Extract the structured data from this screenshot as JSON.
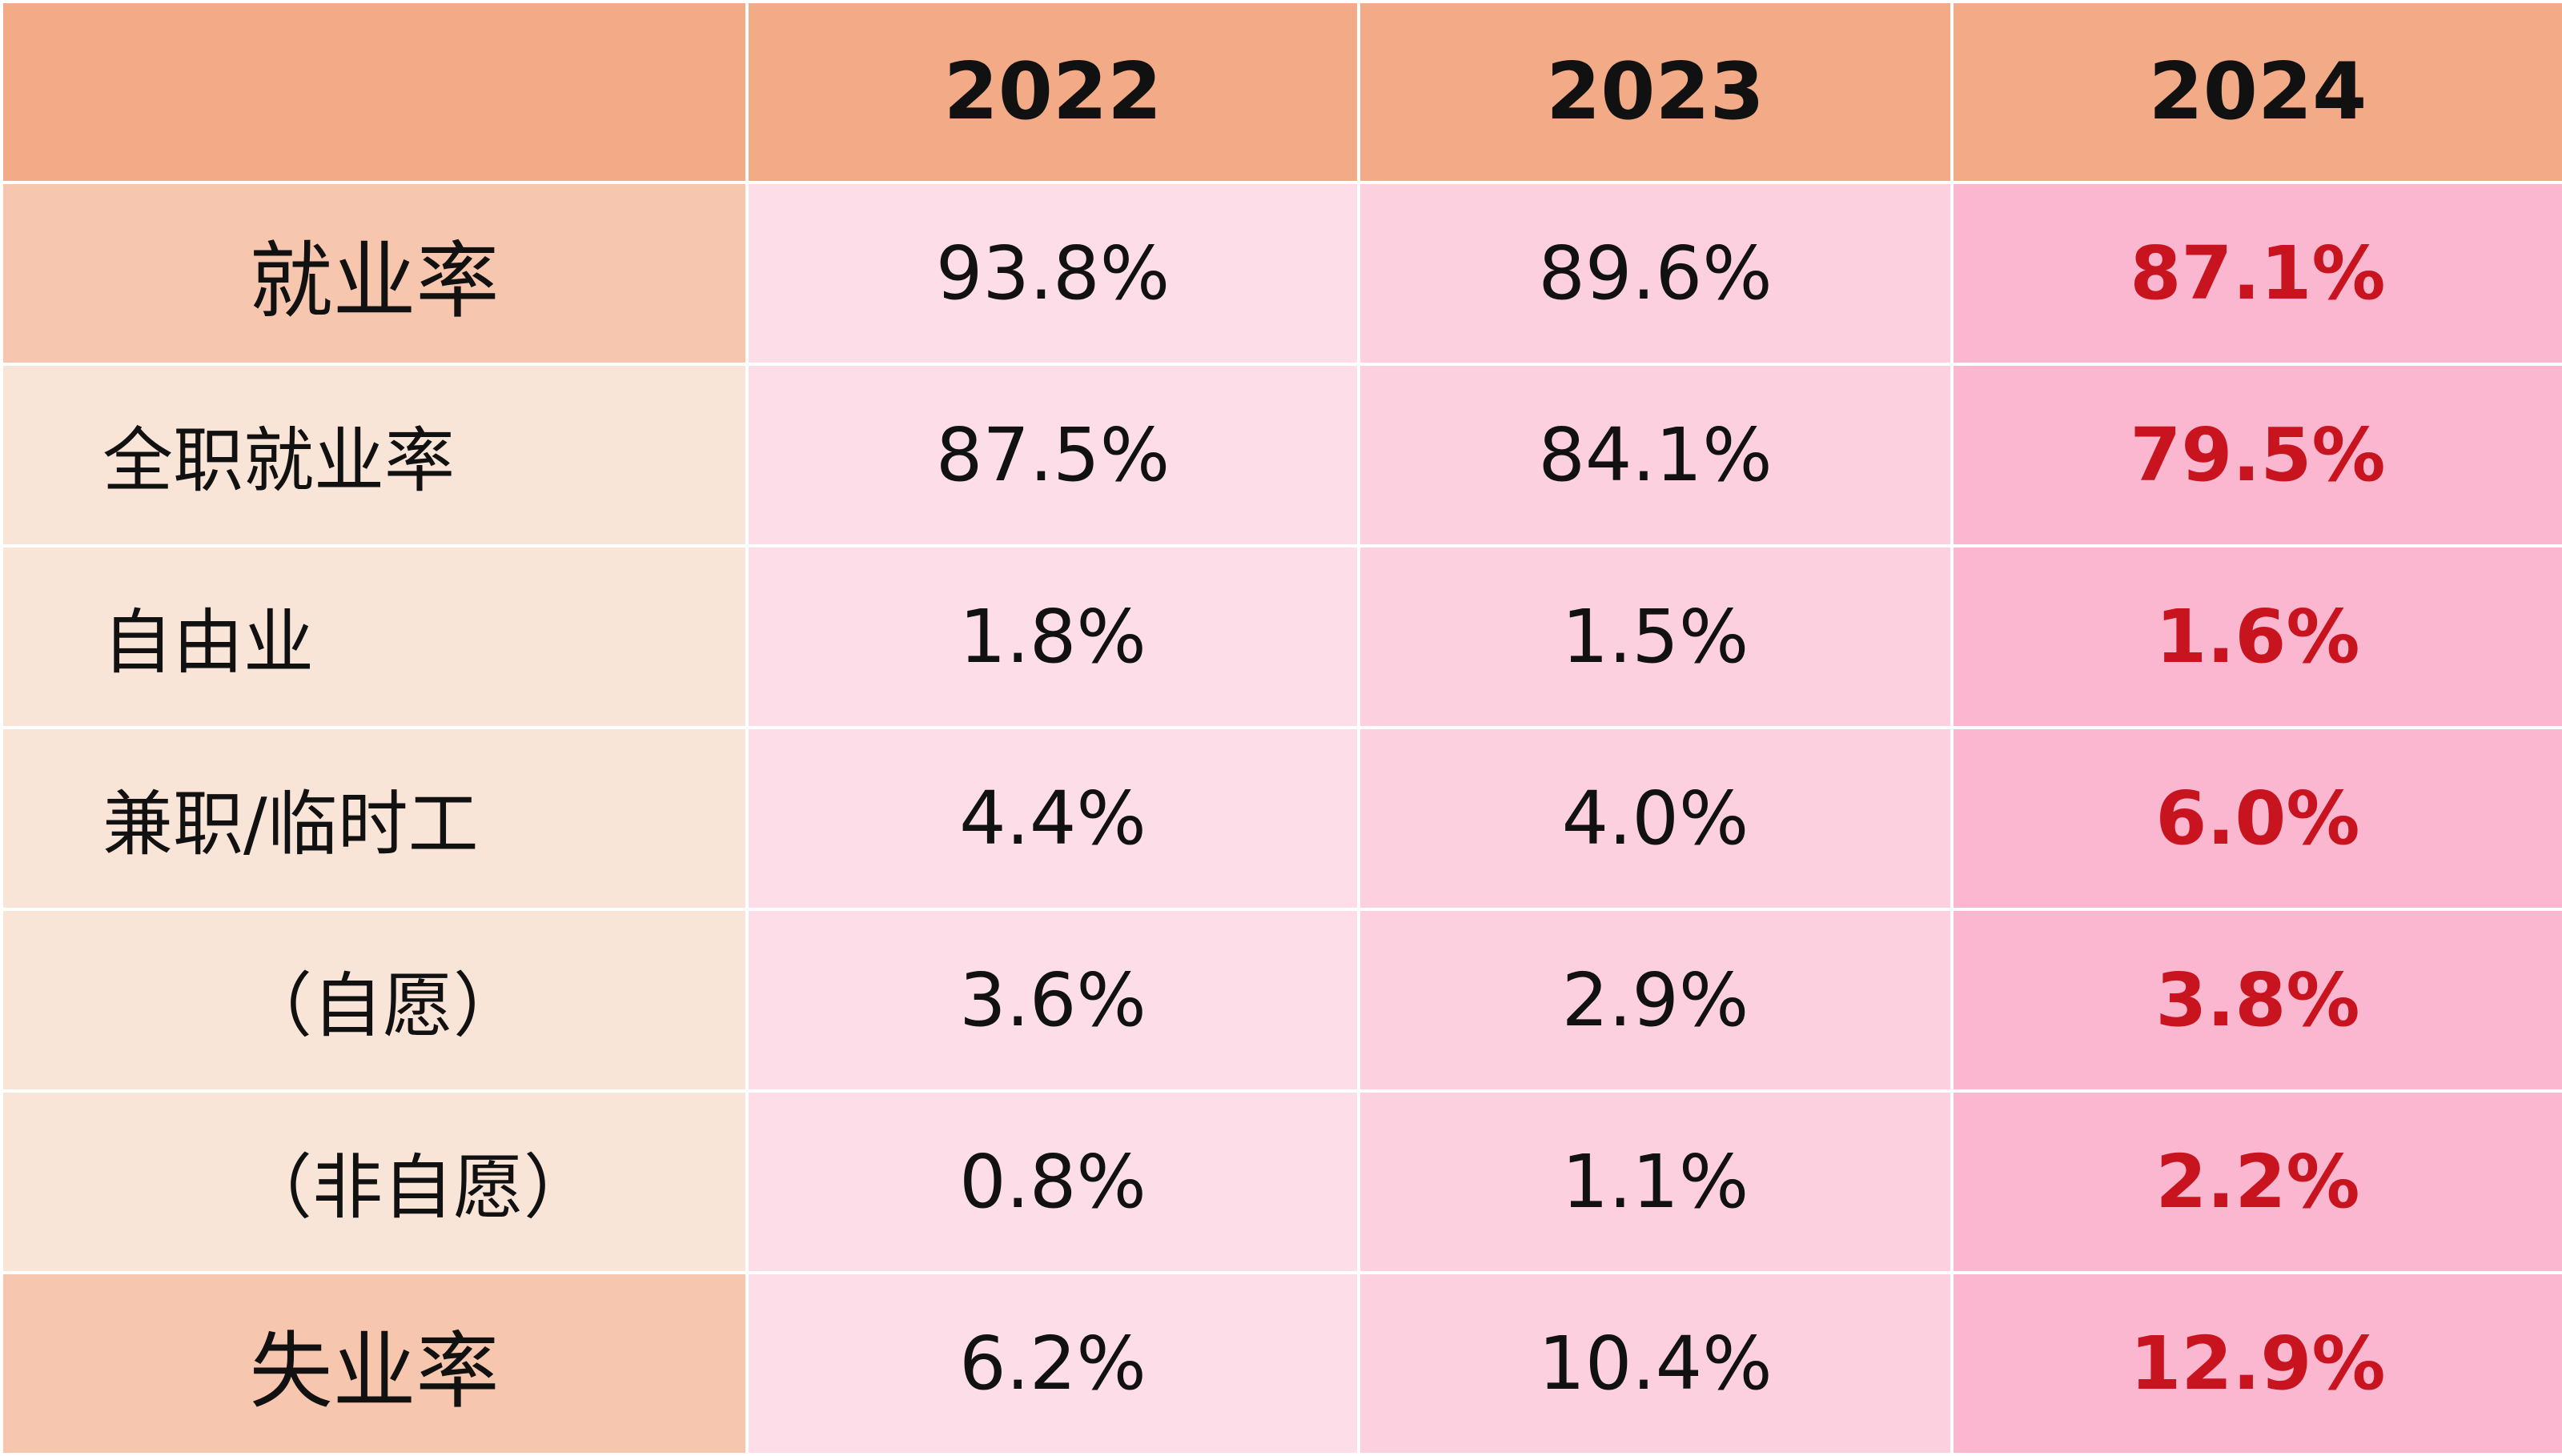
{
  "chart_data": {
    "type": "table",
    "columns": [
      "",
      "2022",
      "2023",
      "2024"
    ],
    "rows": [
      {
        "label": "就业率",
        "major": true,
        "indent": false,
        "values": [
          "93.8%",
          "89.6%",
          "87.1%"
        ]
      },
      {
        "label": "全职就业率",
        "major": false,
        "indent": false,
        "values": [
          "87.5%",
          "84.1%",
          "79.5%"
        ]
      },
      {
        "label": "自由业",
        "major": false,
        "indent": false,
        "values": [
          "1.8%",
          "1.5%",
          "1.6%"
        ]
      },
      {
        "label": "兼职/临时工",
        "major": false,
        "indent": false,
        "values": [
          "4.4%",
          "4.0%",
          "6.0%"
        ]
      },
      {
        "label": "（自愿）",
        "major": false,
        "indent": true,
        "values": [
          "3.6%",
          "2.9%",
          "3.8%"
        ]
      },
      {
        "label": "（非自愿）",
        "major": false,
        "indent": true,
        "values": [
          "0.8%",
          "1.1%",
          "2.2%"
        ]
      },
      {
        "label": "失业率",
        "major": true,
        "indent": false,
        "values": [
          "6.2%",
          "10.4%",
          "12.9%"
        ]
      }
    ]
  },
  "colors": {
    "header_bg": "#f2ab86",
    "major_label_bg": "#f6c7ae",
    "minor_label_bg": "#f9e4d8",
    "col_2022_bg": "#fddde7",
    "col_2023_bg": "#fdd0e0",
    "col_2024_bg": "#fbb6d0",
    "highlight_text": "#c8141e",
    "text": "#111111"
  }
}
